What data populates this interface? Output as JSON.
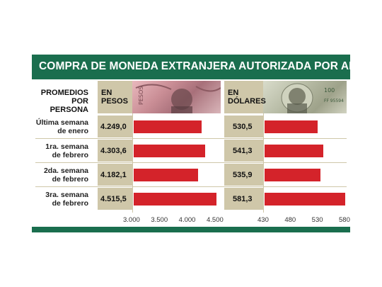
{
  "title": "COMPRA DE MONEDA EXTRANJERA AUTORIZADA POR AFIP",
  "header": {
    "row_label": [
      "PROMEDIOS",
      "POR PERSONA"
    ],
    "pesos_label": [
      "EN",
      "PESOS"
    ],
    "dolares_label": [
      "EN",
      "DÓLARES"
    ]
  },
  "colors": {
    "brand_green": "#1a6e4e",
    "bar_red": "#d4232a",
    "panel_tan": "#cfc7a9"
  },
  "chart_data": [
    {
      "type": "bar",
      "orientation": "horizontal",
      "categories": [
        "Última semana de enero",
        "1ra. semana de febrero",
        "2da. semana de febrero",
        "3ra. semana de febrero"
      ],
      "category_lines": [
        [
          "Última semana",
          "de enero"
        ],
        [
          "1ra. semana",
          "de febrero"
        ],
        [
          "2da. semana",
          "de febrero"
        ],
        [
          "3ra. semana",
          "de febrero"
        ]
      ],
      "values": [
        4249.0,
        4303.6,
        4182.1,
        4515.5
      ],
      "value_labels": [
        "4.249,0",
        "4.303,6",
        "4.182,1",
        "4.515,5"
      ],
      "xlim": [
        3000,
        4500
      ],
      "ticks": [
        3000,
        3500,
        4000,
        4500
      ],
      "tick_labels": [
        "3.000",
        "3.500",
        "4.000",
        "4.500"
      ]
    },
    {
      "type": "bar",
      "orientation": "horizontal",
      "categories": [
        "Última semana de enero",
        "1ra. semana de febrero",
        "2da. semana de febrero",
        "3ra. semana de febrero"
      ],
      "values": [
        530.5,
        541.3,
        535.9,
        581.3
      ],
      "value_labels": [
        "530,5",
        "541,3",
        "535,9",
        "581,3"
      ],
      "xlim": [
        430,
        580
      ],
      "ticks": [
        430,
        480,
        530,
        580
      ],
      "tick_labels": [
        "430",
        "480",
        "530",
        "580"
      ]
    }
  ]
}
